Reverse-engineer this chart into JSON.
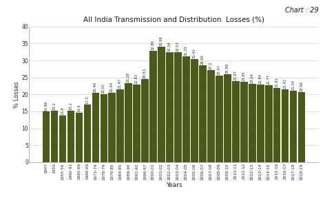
{
  "title": "All India Transmission and Distribution  Losses (%)",
  "chart_label": "Chart : 29",
  "xlabel": "Years",
  "ylabel": "% Losses",
  "bar_color": "#4a5a18",
  "background_color": "#ffffff",
  "ylim": [
    0,
    40
  ],
  "yticks": [
    0,
    5,
    10,
    15,
    20,
    25,
    30,
    35,
    40
  ],
  "categories": [
    "1947",
    "1950",
    "1955-56",
    "1960-61",
    "1965-66",
    "1968-69",
    "1973-74",
    "1978-79",
    "1979-80",
    "1984-85",
    "1989-90",
    "1991-92",
    "1996-97",
    "2000-01",
    "2001-02",
    "2002-03",
    "2003-04",
    "2004-05",
    "2005-06",
    "2006-07",
    "2007-08",
    "2008-09",
    "2009-10",
    "2010-11",
    "2011-12",
    "2012-13",
    "2013-14",
    "2014-15",
    "2015-16",
    "2016-17",
    "2017-18",
    "2018-19"
  ],
  "values": [
    14.88,
    15.2,
    13.8,
    15.2,
    14.6,
    17.0,
    20.46,
    20.02,
    20.44,
    21.47,
    23.28,
    22.83,
    24.53,
    32.86,
    33.98,
    32.54,
    32.53,
    31.25,
    30.42,
    28.65,
    27.2,
    25.47,
    25.89,
    23.97,
    23.65,
    23.04,
    22.84,
    22.77,
    21.81,
    21.42,
    21.04,
    20.66
  ],
  "label_fontsize": 3.8,
  "xtick_fontsize": 4.2,
  "ytick_fontsize": 5.5,
  "xlabel_fontsize": 6.5,
  "ylabel_fontsize": 6.0,
  "title_fontsize": 7.5,
  "chart_label_fontsize": 7.0
}
